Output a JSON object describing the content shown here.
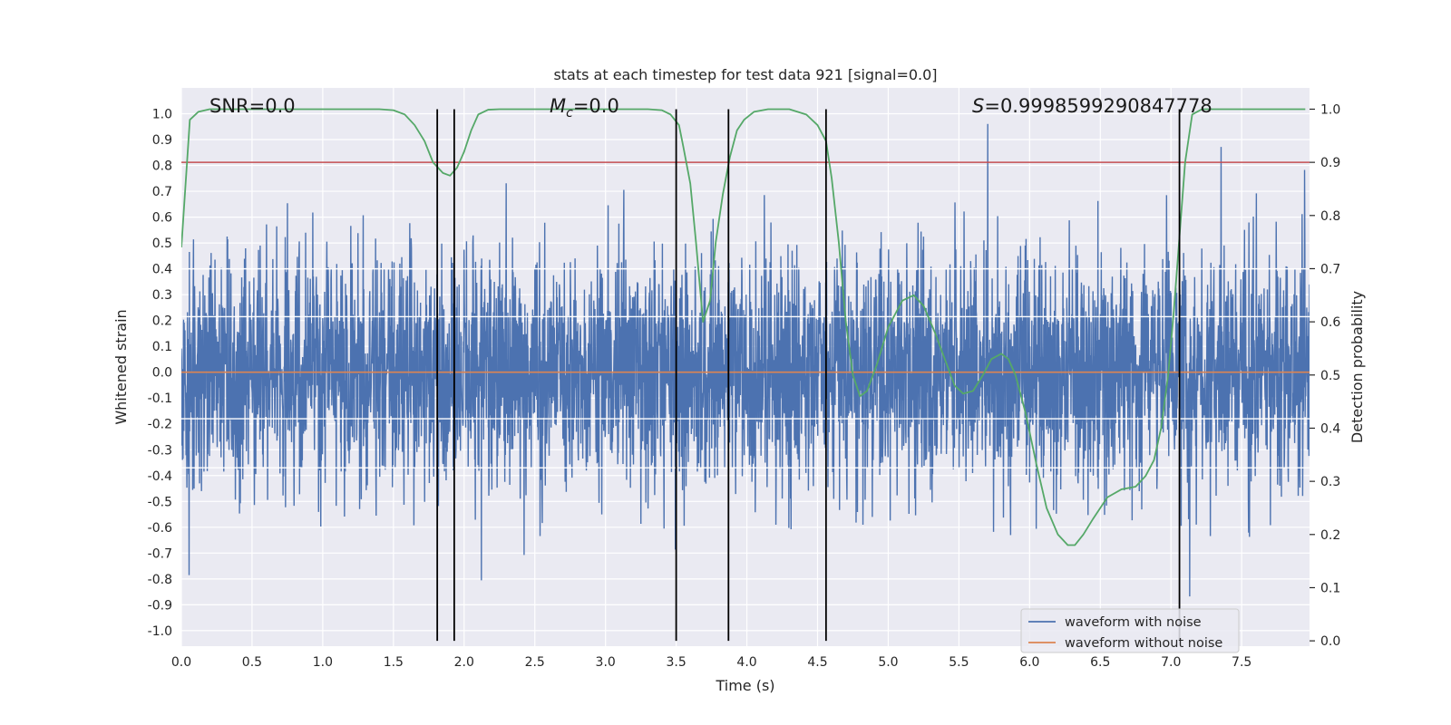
{
  "chart_data": {
    "type": "line",
    "title": "stats at each timestep for test data 921 [signal=0.0]",
    "xlabel": "Time (s)",
    "ylabel": "Whitened strain",
    "y2label": "Detection probability",
    "xlim": [
      0.0,
      7.98
    ],
    "ylim": [
      -1.06,
      1.1
    ],
    "y2lim": [
      -0.01,
      1.04
    ],
    "x_ticks": [
      0.0,
      0.5,
      1.0,
      1.5,
      2.0,
      2.5,
      3.0,
      3.5,
      4.0,
      4.5,
      5.0,
      5.5,
      6.0,
      6.5,
      7.0,
      7.5
    ],
    "x_tick_labels": [
      "0.0",
      "0.5",
      "1.0",
      "1.5",
      "2.0",
      "2.5",
      "3.0",
      "3.5",
      "4.0",
      "4.5",
      "5.0",
      "5.5",
      "6.0",
      "6.5",
      "7.0",
      "7.5"
    ],
    "y_ticks": [
      1.0,
      0.9,
      0.8,
      0.7,
      0.6,
      0.5,
      0.4,
      0.3,
      0.2,
      0.1,
      0.0,
      -0.1,
      -0.2,
      -0.3,
      -0.4,
      -0.5,
      -0.6,
      -0.7,
      -0.8,
      -0.9,
      -1.0
    ],
    "y_tick_labels": [
      "1.0",
      "0.9",
      "0.8",
      "0.7",
      "0.6",
      "0.5",
      "0.4",
      "0.3",
      "0.2",
      "0.1",
      "0.0",
      "-0.1",
      "-0.2",
      "-0.3",
      "-0.4",
      "-0.5",
      "-0.6",
      "-0.7",
      "-0.8",
      "-0.9",
      "-1.0"
    ],
    "y2_ticks": [
      1.0,
      0.9,
      0.8,
      0.7,
      0.6,
      0.5,
      0.4,
      0.3,
      0.2,
      0.1,
      0.0
    ],
    "y2_tick_labels": [
      "1.0",
      "0.9",
      "0.8",
      "0.7",
      "0.6",
      "0.5",
      "0.4",
      "0.3",
      "0.2",
      "0.1",
      "0.0"
    ],
    "grid": true,
    "legend_position": "bottom-right",
    "annotations": {
      "snr": "SNR=0.0",
      "mc_symbol": "M",
      "mc_subscript": "c",
      "mc_value": "=0.0",
      "s_symbol": "S",
      "s_value": "=0.9998599290847778"
    },
    "series": [
      {
        "name": "waveform with noise",
        "color": "#4c72b0",
        "axis": "left",
        "noise_envelope": {
          "sigma": 0.22,
          "min": -0.97,
          "max": 1.0,
          "samples": 4096
        }
      },
      {
        "name": "waveform without noise",
        "color": "#dd8452",
        "axis": "left",
        "x": [
          0.0,
          7.98
        ],
        "y": [
          0.0,
          0.0
        ]
      },
      {
        "name": "detection probability",
        "color": "#55a868",
        "axis": "right",
        "x": [
          0.0,
          0.06,
          0.12,
          0.2,
          0.3,
          0.5,
          1.0,
          1.4,
          1.5,
          1.58,
          1.65,
          1.72,
          1.78,
          1.85,
          1.9,
          1.95,
          2.0,
          2.05,
          2.1,
          2.17,
          2.25,
          2.4,
          3.0,
          3.3,
          3.4,
          3.46,
          3.52,
          3.55,
          3.6,
          3.64,
          3.69,
          3.74,
          3.78,
          3.83,
          3.88,
          3.93,
          3.98,
          4.05,
          4.15,
          4.3,
          4.42,
          4.5,
          4.56,
          4.6,
          4.65,
          4.7,
          4.75,
          4.8,
          4.85,
          4.92,
          5.0,
          5.1,
          5.18,
          5.25,
          5.33,
          5.4,
          5.47,
          5.53,
          5.6,
          5.67,
          5.73,
          5.8,
          5.85,
          5.9,
          5.97,
          6.05,
          6.12,
          6.2,
          6.27,
          6.32,
          6.38,
          6.45,
          6.55,
          6.65,
          6.75,
          6.82,
          6.88,
          6.93,
          6.98,
          7.02,
          7.06,
          7.1,
          7.15,
          7.22,
          7.35,
          7.6,
          7.95
        ],
        "y": [
          0.74,
          0.98,
          0.995,
          1.0,
          1.0,
          1.0,
          1.0,
          1.0,
          0.998,
          0.99,
          0.97,
          0.94,
          0.9,
          0.88,
          0.875,
          0.89,
          0.92,
          0.96,
          0.99,
          0.999,
          1.0,
          1.0,
          1.0,
          1.0,
          0.998,
          0.99,
          0.97,
          0.93,
          0.86,
          0.75,
          0.6,
          0.64,
          0.75,
          0.84,
          0.91,
          0.96,
          0.98,
          0.995,
          1.0,
          1.0,
          0.99,
          0.97,
          0.94,
          0.87,
          0.75,
          0.6,
          0.5,
          0.46,
          0.47,
          0.52,
          0.59,
          0.64,
          0.65,
          0.63,
          0.58,
          0.53,
          0.48,
          0.465,
          0.47,
          0.5,
          0.53,
          0.54,
          0.53,
          0.5,
          0.43,
          0.33,
          0.25,
          0.2,
          0.18,
          0.18,
          0.2,
          0.23,
          0.27,
          0.285,
          0.29,
          0.31,
          0.34,
          0.4,
          0.5,
          0.62,
          0.76,
          0.9,
          0.99,
          1.0,
          1.0,
          1.0,
          1.0
        ]
      }
    ],
    "threshold": {
      "color": "#c44e52",
      "value": 0.9,
      "axis": "right"
    },
    "event_lines": {
      "color": "#000000",
      "x": [
        1.81,
        1.93,
        3.5,
        3.87,
        4.56,
        7.06
      ],
      "y_range": [
        0.0,
        1.0
      ],
      "axis": "right"
    },
    "white_hlines": [
      0.215,
      -0.18,
      0.4,
      -0.37
    ]
  }
}
